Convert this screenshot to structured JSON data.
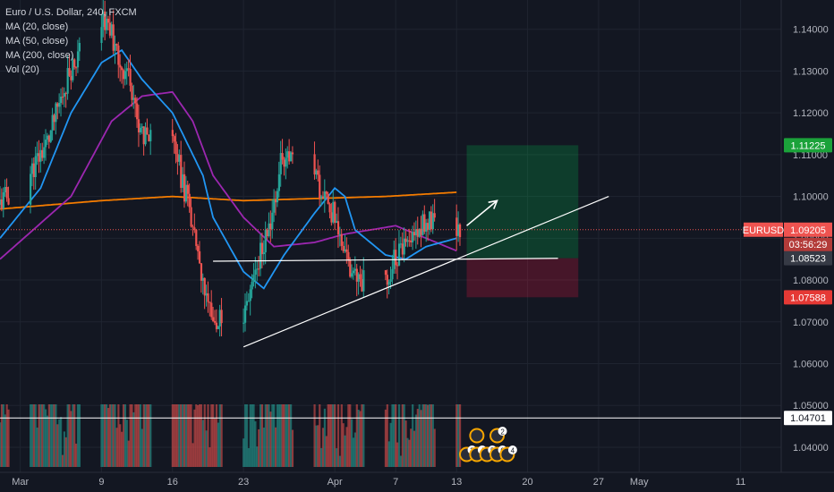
{
  "legend": {
    "symbol": "Euro / U.S. Dollar, 240, FXCM",
    "ma20": "MA (20, close)",
    "ma50": "MA (50, close)",
    "ma200": "MA (200, close)",
    "vol": "Vol (20)"
  },
  "colors": {
    "background": "#131722",
    "grid": "#1f2430",
    "up": "#26a69a",
    "down": "#ef5350",
    "ma20": "#2196f3",
    "ma50": "#9c27b0",
    "ma200": "#f57c00",
    "target": "#00c853",
    "stop": "#ff1744"
  },
  "chart_data": {
    "type": "candlestick",
    "symbol": "EURUSD",
    "ylim": [
      1.034,
      1.147
    ],
    "y_ticks": [
      "1.14000",
      "1.13000",
      "1.12000",
      "1.11000",
      "1.10000",
      "1.09000",
      "1.08000",
      "1.07000",
      "1.06000",
      "1.05000",
      "1.04000"
    ],
    "y_tick_values": [
      1.14,
      1.13,
      1.12,
      1.11,
      1.1,
      1.09,
      1.08,
      1.07,
      1.06,
      1.05,
      1.04
    ],
    "xlim": [
      "2020-02-28",
      "2020-05-15"
    ],
    "x_ticks": [
      {
        "label": "Mar",
        "date": "2020-03-01"
      },
      {
        "label": "9",
        "date": "2020-03-09"
      },
      {
        "label": "16",
        "date": "2020-03-16"
      },
      {
        "label": "23",
        "date": "2020-03-23"
      },
      {
        "label": "Apr",
        "date": "2020-04-01"
      },
      {
        "label": "7",
        "date": "2020-04-07"
      },
      {
        "label": "13",
        "date": "2020-04-13"
      },
      {
        "label": "20",
        "date": "2020-04-20"
      },
      {
        "label": "27",
        "date": "2020-04-27"
      },
      {
        "label": "May",
        "date": "2020-05-01"
      },
      {
        "label": "11",
        "date": "2020-05-11"
      }
    ],
    "price_path": [
      [
        "2020-02-28",
        1.098
      ],
      [
        "2020-03-02",
        1.105
      ],
      [
        "2020-03-04",
        1.114
      ],
      [
        "2020-03-06",
        1.13
      ],
      [
        "2020-03-09",
        1.143
      ],
      [
        "2020-03-10",
        1.14
      ],
      [
        "2020-03-11",
        1.132
      ],
      [
        "2020-03-12",
        1.128
      ],
      [
        "2020-03-13",
        1.115
      ],
      [
        "2020-03-16",
        1.119
      ],
      [
        "2020-03-17",
        1.105
      ],
      [
        "2020-03-18",
        1.095
      ],
      [
        "2020-03-19",
        1.08
      ],
      [
        "2020-03-20",
        1.07
      ],
      [
        "2020-03-23",
        1.07
      ],
      [
        "2020-03-24",
        1.08
      ],
      [
        "2020-03-26",
        1.095
      ],
      [
        "2020-03-27",
        1.11
      ],
      [
        "2020-03-30",
        1.105
      ],
      [
        "2020-03-31",
        1.1
      ],
      [
        "2020-04-01",
        1.096
      ],
      [
        "2020-04-02",
        1.088
      ],
      [
        "2020-04-03",
        1.08
      ],
      [
        "2020-04-06",
        1.079
      ],
      [
        "2020-04-07",
        1.085
      ],
      [
        "2020-04-08",
        1.087
      ],
      [
        "2020-04-09",
        1.09
      ],
      [
        "2020-04-10",
        1.094
      ],
      [
        "2020-04-13",
        1.092
      ]
    ],
    "ma20": [
      [
        "2020-02-28",
        1.09
      ],
      [
        "2020-03-03",
        1.102
      ],
      [
        "2020-03-06",
        1.12
      ],
      [
        "2020-03-09",
        1.132
      ],
      [
        "2020-03-11",
        1.135
      ],
      [
        "2020-03-13",
        1.128
      ],
      [
        "2020-03-16",
        1.12
      ],
      [
        "2020-03-19",
        1.105
      ],
      [
        "2020-03-20",
        1.095
      ],
      [
        "2020-03-23",
        1.082
      ],
      [
        "2020-03-25",
        1.078
      ],
      [
        "2020-03-27",
        1.086
      ],
      [
        "2020-03-30",
        1.096
      ],
      [
        "2020-04-01",
        1.102
      ],
      [
        "2020-04-02",
        1.1
      ],
      [
        "2020-04-03",
        1.092
      ],
      [
        "2020-04-06",
        1.086
      ],
      [
        "2020-04-08",
        1.085
      ],
      [
        "2020-04-10",
        1.088
      ],
      [
        "2020-04-13",
        1.09
      ]
    ],
    "ma50": [
      [
        "2020-02-28",
        1.085
      ],
      [
        "2020-03-06",
        1.1
      ],
      [
        "2020-03-10",
        1.118
      ],
      [
        "2020-03-13",
        1.124
      ],
      [
        "2020-03-16",
        1.125
      ],
      [
        "2020-03-18",
        1.118
      ],
      [
        "2020-03-20",
        1.105
      ],
      [
        "2020-03-23",
        1.095
      ],
      [
        "2020-03-26",
        1.088
      ],
      [
        "2020-03-30",
        1.089
      ],
      [
        "2020-04-02",
        1.091
      ],
      [
        "2020-04-07",
        1.093
      ],
      [
        "2020-04-10",
        1.09
      ],
      [
        "2020-04-13",
        1.087
      ]
    ],
    "ma200": [
      [
        "2020-02-28",
        1.097
      ],
      [
        "2020-03-09",
        1.099
      ],
      [
        "2020-03-16",
        1.1
      ],
      [
        "2020-03-23",
        1.099
      ],
      [
        "2020-03-30",
        1.0995
      ],
      [
        "2020-04-06",
        1.1
      ],
      [
        "2020-04-13",
        1.101
      ]
    ],
    "current_price": {
      "label": "EURUSD",
      "value": "1.09205",
      "price": 1.09205,
      "countdown": "03:56:29"
    },
    "price_labels": [
      {
        "value": "1.11225",
        "price": 1.11225,
        "kind": "target"
      },
      {
        "value": "1.08523",
        "price": 1.08523,
        "kind": "entry"
      },
      {
        "value": "1.07588",
        "price": 1.07588,
        "kind": "stop"
      },
      {
        "value": "1.04701",
        "price": 1.04701,
        "kind": "line"
      }
    ],
    "position": {
      "start": "2020-04-14",
      "end": "2020-04-25",
      "entry": 1.08523,
      "target": 1.11225,
      "stop": 1.07588
    },
    "drawings": {
      "support_line": [
        [
          "2020-03-23",
          1.064
        ],
        [
          "2020-04-28",
          1.1
        ]
      ],
      "horizontal_line": [
        [
          "2020-03-20",
          1.0845
        ],
        [
          "2020-04-23",
          1.0852
        ]
      ],
      "arrow": [
        [
          "2020-04-14",
          1.093
        ],
        [
          "2020-04-17",
          1.099
        ]
      ],
      "full_line_price": 1.04701
    },
    "events": {
      "top_row": [
        {
          "date": "2020-04-15",
          "text": ""
        },
        {
          "date": "2020-04-17",
          "text": "2"
        }
      ],
      "bottom_row": [
        {
          "date": "2020-04-14",
          "text": "3"
        },
        {
          "date": "2020-04-15",
          "text": "4"
        },
        {
          "date": "2020-04-16",
          "text": "5"
        },
        {
          "date": "2020-04-17",
          "text": "0"
        },
        {
          "date": "2020-04-18",
          "text": "4"
        }
      ]
    }
  }
}
